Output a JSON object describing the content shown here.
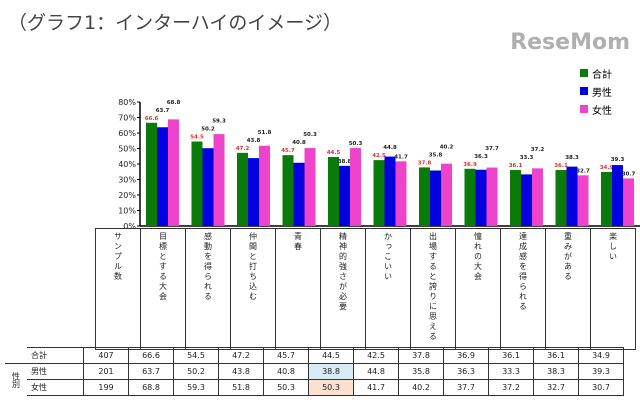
{
  "title": "（グラフ1：インターハイのイメージ）",
  "watermark": "ReseMom",
  "chart_data": {
    "type": "bar",
    "title": "（グラフ1：インターハイのイメージ）",
    "categories": [
      "目標とする大会",
      "感動を得られる",
      "仲間と打ち込む",
      "青春",
      "精神的強さが必要",
      "かっこいい",
      "出場すると誇りに思える",
      "憧れの大会",
      "達成感を得られる",
      "重みがある",
      "楽しい"
    ],
    "ylim": [
      0,
      80
    ],
    "yticks": [
      "0%",
      "10%",
      "20%",
      "30%",
      "40%",
      "50%",
      "60%",
      "70%",
      "80%"
    ],
    "legend_position": "top-right",
    "series": [
      {
        "name": "合計",
        "color": "#0a7a0a",
        "label_color": "#e03030",
        "values": [
          66.6,
          54.5,
          47.2,
          45.7,
          44.5,
          42.5,
          37.8,
          36.9,
          36.1,
          36.1,
          34.9
        ]
      },
      {
        "name": "男性",
        "color": "#0000e0",
        "label_color": "#222222",
        "values": [
          63.7,
          50.2,
          43.8,
          40.8,
          38.8,
          44.8,
          35.8,
          36.3,
          33.3,
          38.3,
          39.3
        ]
      },
      {
        "name": "女性",
        "color": "#ee44cc",
        "label_color": "#222222",
        "values": [
          68.8,
          59.3,
          51.8,
          50.3,
          50.3,
          41.7,
          40.2,
          37.7,
          37.2,
          32.7,
          30.7
        ]
      }
    ]
  },
  "table": {
    "sample_header": "サンプル数",
    "group_label": "性別",
    "rows": [
      {
        "label": "合計",
        "n": "407",
        "values": [
          "66.6",
          "54.5",
          "47.2",
          "45.7",
          "44.5",
          "42.5",
          "37.8",
          "36.9",
          "36.1",
          "36.1",
          "34.9"
        ]
      },
      {
        "label": "男性",
        "n": "201",
        "values": [
          "63.7",
          "50.2",
          "43.8",
          "40.8",
          "38.8",
          "44.8",
          "35.8",
          "36.3",
          "33.3",
          "38.3",
          "39.3"
        ]
      },
      {
        "label": "女性",
        "n": "199",
        "values": [
          "68.8",
          "59.3",
          "51.8",
          "50.3",
          "50.3",
          "41.7",
          "40.2",
          "37.7",
          "37.2",
          "32.7",
          "30.7"
        ]
      }
    ]
  }
}
